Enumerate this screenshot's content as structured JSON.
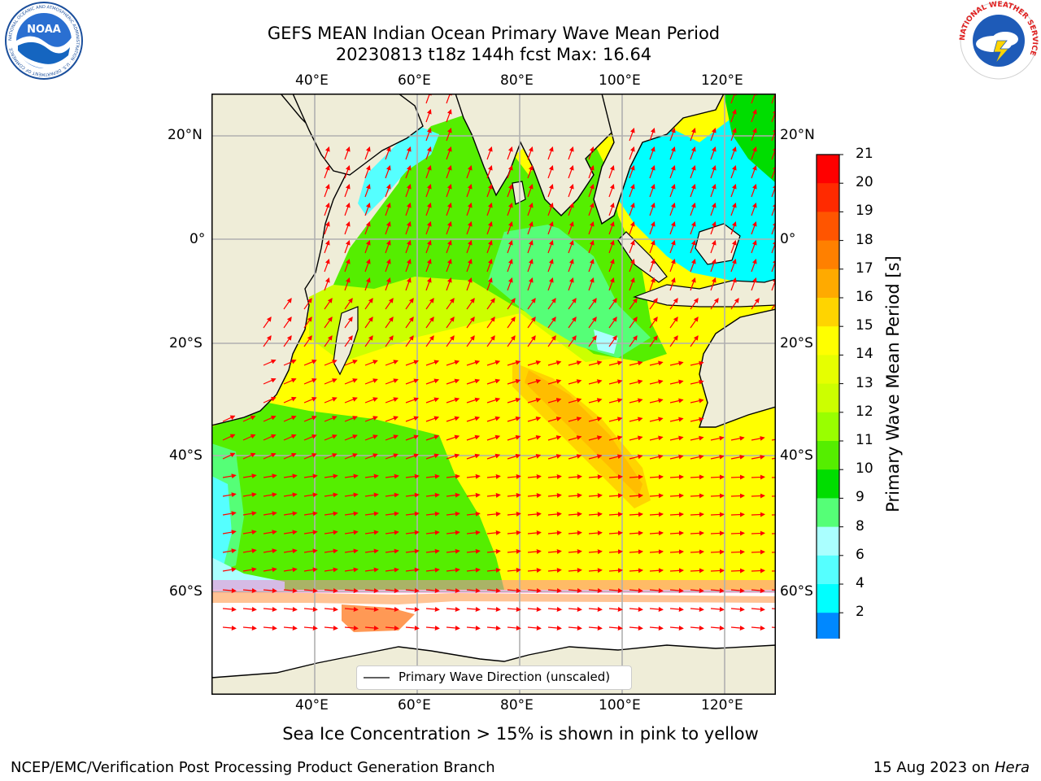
{
  "title": {
    "line1": "GEFS MEAN Indian Ocean Primary Wave Mean Period",
    "line2": "20230813 t18z 144h fcst   Max: 16.64"
  },
  "axes": {
    "lon_labels": [
      "40°E",
      "60°E",
      "80°E",
      "100°E",
      "120°E"
    ],
    "lat_labels": [
      "20°N",
      "0°",
      "20°S",
      "40°S",
      "60°S"
    ]
  },
  "legend": {
    "label": "Primary Wave Direction (unscaled)"
  },
  "colorbar": {
    "label": "Primary Wave Mean Period [s]",
    "ticks": [
      "21",
      "20",
      "19",
      "18",
      "17",
      "16",
      "15",
      "14",
      "13",
      "12",
      "11",
      "10",
      "9",
      "8",
      "6",
      "4",
      "2"
    ],
    "colors": [
      "#ff0000",
      "#ff2a00",
      "#ff5500",
      "#ff8000",
      "#ffaa00",
      "#ffd400",
      "#ffff00",
      "#e6ff00",
      "#ccff00",
      "#99ff00",
      "#55ee00",
      "#00dd00",
      "#55ff77",
      "#aaffff",
      "#55ffff",
      "#00ffff",
      "#0088ff"
    ],
    "extend_color": "#0000ff"
  },
  "notes": {
    "sea_ice": "Sea Ice Concentration > 15% is shown in pink to yellow",
    "credit": "NCEP/EMC/Verification Post Processing Product Generation Branch",
    "date": "15 Aug 2023 on",
    "machine": "Hera"
  },
  "logos": {
    "left": "NOAA",
    "left_ring": "NATIONAL OCEANIC AND ATMOSPHERIC ADMINISTRATION · U.S. DEPARTMENT OF COMMERCE",
    "right_ring": "NATIONAL WEATHER SERVICE"
  },
  "icons": [
    "noaa-logo-icon",
    "nws-logo-icon",
    "arrow-icon"
  ]
}
